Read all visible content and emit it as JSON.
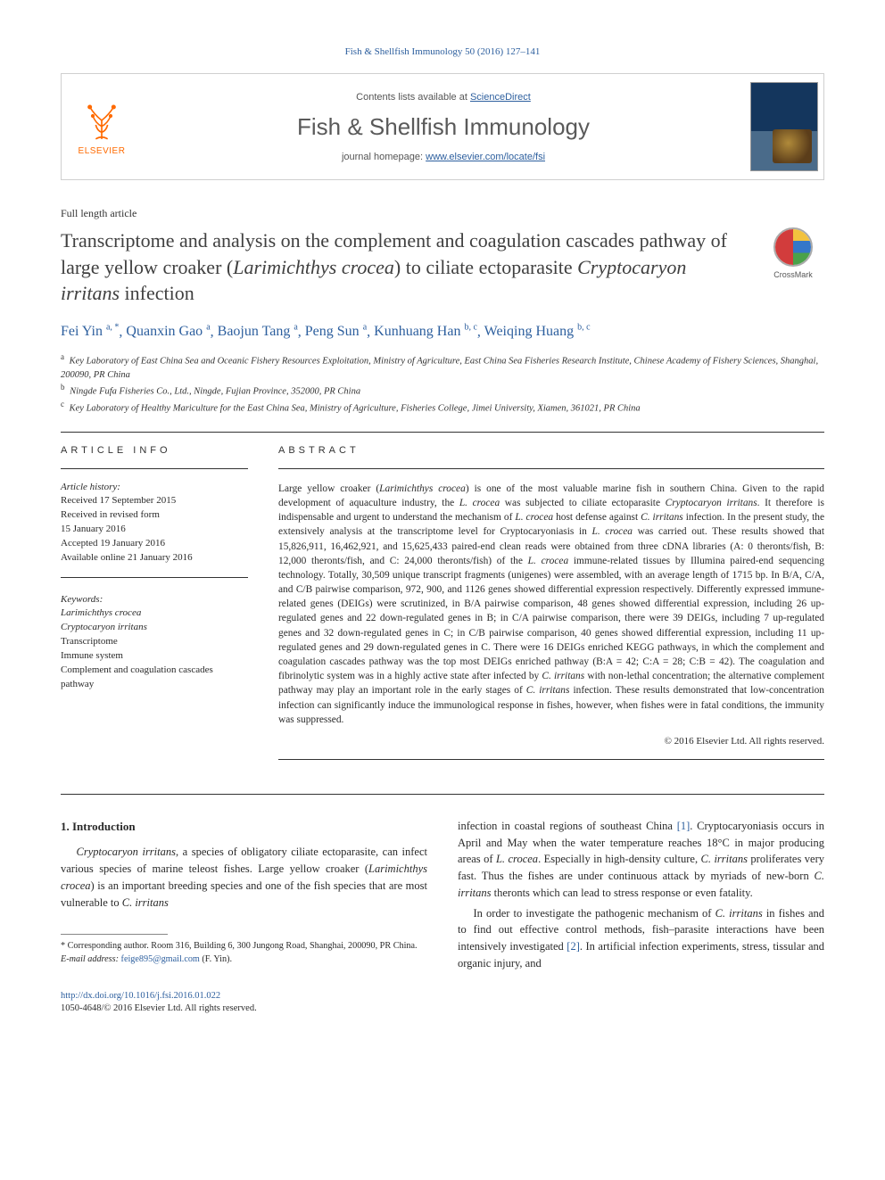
{
  "citation": "Fish & Shellfish Immunology 50 (2016) 127–141",
  "masthead": {
    "publisher_word": "ELSEVIER",
    "contents_prefix": "Contents lists available at ",
    "contents_link": "ScienceDirect",
    "journal_name": "Fish & Shellfish Immunology",
    "homepage_prefix": "journal homepage: ",
    "homepage_link": "www.elsevier.com/locate/fsi"
  },
  "article_type": "Full length article",
  "title_parts": {
    "p1": "Transcriptome and analysis on the complement and coagulation cascades pathway of large yellow croaker (",
    "ital1": "Larimichthys crocea",
    "p2": ") to ciliate ectoparasite ",
    "ital2": "Cryptocaryon irritans",
    "p3": " infection"
  },
  "crossmark_label": "CrossMark",
  "authors": [
    {
      "name": "Fei Yin",
      "sup": "a, *"
    },
    {
      "name": "Quanxin Gao",
      "sup": "a"
    },
    {
      "name": "Baojun Tang",
      "sup": "a"
    },
    {
      "name": "Peng Sun",
      "sup": "a"
    },
    {
      "name": "Kunhuang Han",
      "sup": "b, c"
    },
    {
      "name": "Weiqing Huang",
      "sup": "b, c"
    }
  ],
  "affiliations": [
    {
      "key": "a",
      "text": "Key Laboratory of East China Sea and Oceanic Fishery Resources Exploitation, Ministry of Agriculture, East China Sea Fisheries Research Institute, Chinese Academy of Fishery Sciences, Shanghai, 200090, PR China"
    },
    {
      "key": "b",
      "text": "Ningde Fufa Fisheries Co., Ltd., Ningde, Fujian Province, 352000, PR China"
    },
    {
      "key": "c",
      "text": "Key Laboratory of Healthy Mariculture for the East China Sea, Ministry of Agriculture, Fisheries College, Jimei University, Xiamen, 361021, PR China"
    }
  ],
  "info_heading": "ARTICLE INFO",
  "abstract_heading": "ABSTRACT",
  "history_label": "Article history:",
  "history": [
    "Received 17 September 2015",
    "Received in revised form",
    "15 January 2016",
    "Accepted 19 January 2016",
    "Available online 21 January 2016"
  ],
  "keywords_label": "Keywords:",
  "keywords": [
    {
      "text": "Larimichthys crocea",
      "italic": true
    },
    {
      "text": "Cryptocaryon irritans",
      "italic": true
    },
    {
      "text": "Transcriptome",
      "italic": false
    },
    {
      "text": "Immune system",
      "italic": false
    },
    {
      "text": "Complement and coagulation cascades pathway",
      "italic": false
    }
  ],
  "abstract": {
    "pre1": "Large yellow croaker (",
    "it1": "Larimichthys crocea",
    "pre2": ") is one of the most valuable marine fish in southern China. Given to the rapid development of aquaculture industry, the ",
    "it2": "L. crocea",
    "pre3": " was subjected to ciliate ectoparasite ",
    "it3": "Cryptocaryon irritans",
    "pre4": ". It therefore is indispensable and urgent to understand the mechanism of ",
    "it4": "L. crocea",
    "pre5": " host defense against ",
    "it5": "C. irritans",
    "pre6": " infection. In the present study, the extensively analysis at the transcriptome level for Cryptocaryoniasis in ",
    "it6": "L. crocea",
    "pre7": " was carried out. These results showed that 15,826,911, 16,462,921, and 15,625,433 paired-end clean reads were obtained from three cDNA libraries (A: 0 theronts/fish, B: 12,000 theronts/fish, and C: 24,000 theronts/fish) of the ",
    "it7": "L. crocea",
    "pre8": " immune-related tissues by Illumina paired-end sequencing technology. Totally, 30,509 unique transcript fragments (unigenes) were assembled, with an average length of 1715 bp. In B/A, C/A, and C/B pairwise comparison, 972, 900, and 1126 genes showed differential expression respectively. Differently expressed immune-related genes (DEIGs) were scrutinized, in B/A pairwise comparison, 48 genes showed differential expression, including 26 up-regulated genes and 22 down-regulated genes in B; in C/A pairwise comparison, there were 39 DEIGs, including 7 up-regulated genes and 32 down-regulated genes in C; in C/B pairwise comparison, 40 genes showed differential expression, including 11 up-regulated genes and 29 down-regulated genes in C. There were 16 DEIGs enriched KEGG pathways, in which the complement and coagulation cascades pathway was the top most DEIGs enriched pathway (B:A = 42; C:A = 28; C:B = 42). The coagulation and fibrinolytic system was in a highly active state after infected by ",
    "it8": "C. irritans",
    "pre9": " with non-lethal concentration; the alternative complement pathway may play an important role in the early stages of ",
    "it9": "C. irritans",
    "pre10": " infection. These results demonstrated that low-concentration infection can significantly induce the immunological response in fishes, however, when fishes were in fatal conditions, the immunity was suppressed."
  },
  "copyright": "© 2016 Elsevier Ltd. All rights reserved.",
  "section1_head": "1. Introduction",
  "col_left": {
    "p1a": "Cryptocaryon irritans",
    "p1b": ", a species of obligatory ciliate ectoparasite, can infect various species of marine teleost fishes. Large yellow croaker (",
    "p1c": "Larimichthys crocea",
    "p1d": ") is an important breeding species and one of the fish species that are most vulnerable to ",
    "p1e": "C. irritans"
  },
  "col_right": {
    "p1a": "infection in coastal regions of southeast China ",
    "ref1": "[1]",
    "p1b": ". Cryptocaryoniasis occurs in April and May when the water temperature reaches 18°C in major producing areas of ",
    "it1": "L. crocea",
    "p1c": ". Especially in high-density culture, ",
    "it2": "C. irritans",
    "p1d": " proliferates very fast. Thus the fishes are under continuous attack by myriads of new-born ",
    "it3": "C. irritans",
    "p1e": " theronts which can lead to stress response or even fatality.",
    "p2a": "In order to investigate the pathogenic mechanism of ",
    "it4": "C. irritans",
    "p2b": " in fishes and to find out effective control methods, fish–parasite interactions have been intensively investigated ",
    "ref2": "[2]",
    "p2c": ". In artificial infection experiments, stress, tissular and organic injury, and"
  },
  "footnotes": {
    "corr": "* Corresponding author. Room 316, Building 6, 300 Jungong Road, Shanghai, 200090, PR China.",
    "email_label": "E-mail address:",
    "email": "feige895@gmail.com",
    "email_tail": "(F. Yin)."
  },
  "bottom": {
    "doi": "http://dx.doi.org/10.1016/j.fsi.2016.01.022",
    "issn_line": "1050-4648/© 2016 Elsevier Ltd. All rights reserved."
  },
  "colors": {
    "link": "#2d5f9e",
    "orange": "#ff6a00",
    "text": "#2a2a2a"
  }
}
